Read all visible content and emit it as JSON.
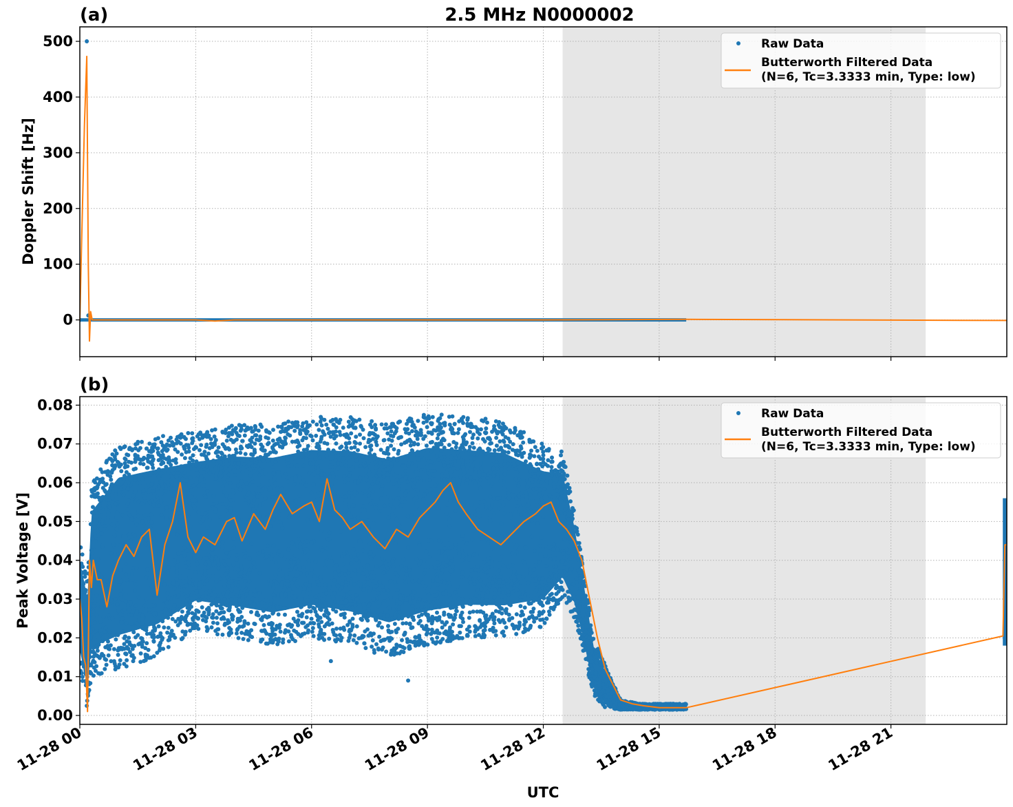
{
  "figure": {
    "suptitle": "2.5 MHz N0000002",
    "xlabel": "UTC",
    "x_tick_labels": [
      "11-28 00",
      "11-28 03",
      "11-28 06",
      "11-28 09",
      "11-28 12",
      "11-28 15",
      "11-28 18",
      "11-28 21"
    ],
    "legend": {
      "raw_label": "Raw Data",
      "filtered_label_line1": "Butterworth Filtered Data",
      "filtered_label_line2": "(N=6, Tc=3.3333 min, Type: low)"
    },
    "colors": {
      "raw": "#1f77b4",
      "filtered": "#ff7f0e",
      "shade": "#e6e6e6",
      "grid": "#b0b0b0"
    }
  },
  "chart_data": [
    {
      "panel": "(a)",
      "type": "scatter",
      "title": "2.5 MHz N0000002",
      "xlabel": "UTC",
      "ylabel": "Doppler Shift [Hz]",
      "xlim_hours": [
        0,
        24
      ],
      "ylim": [
        -66,
        526
      ],
      "yticks": [
        0,
        100,
        200,
        300,
        400,
        500
      ],
      "ytick_labels": [
        "0",
        "100",
        "200",
        "300",
        "400",
        "500"
      ],
      "grid": true,
      "legend_position": "upper right",
      "shaded_region_hours": [
        12.5,
        21.9
      ],
      "series": [
        {
          "name": "Raw Data",
          "style": "markers",
          "band": {
            "x_start": 0.0,
            "x_end": 15.7,
            "y_low": -3,
            "y_high": 3
          },
          "outliers": [
            {
              "x": 0.18,
              "y": 500
            },
            {
              "x": 0.22,
              "y": 8
            },
            {
              "x": 0.0,
              "y": 0
            }
          ]
        },
        {
          "name": "Butterworth Filtered Data (N=6, Tc=3.3333 min, Type: low)",
          "style": "line",
          "x": [
            0.0,
            0.05,
            0.12,
            0.18,
            0.22,
            0.25,
            0.28,
            0.32,
            0.4,
            3.0,
            3.5,
            4.0,
            12.0,
            15.7,
            23.9,
            24.0
          ],
          "y": [
            0,
            150,
            350,
            473,
            100,
            -38,
            15,
            0,
            0,
            0,
            -2,
            0,
            0,
            1,
            -1,
            -1
          ]
        }
      ]
    },
    {
      "panel": "(b)",
      "type": "scatter",
      "xlabel": "UTC",
      "ylabel": "Peak Voltage [V]",
      "xlim_hours": [
        0,
        24
      ],
      "ylim": [
        -0.0023,
        0.0822
      ],
      "yticks": [
        0.0,
        0.01,
        0.02,
        0.03,
        0.04,
        0.05,
        0.06,
        0.07,
        0.08
      ],
      "ytick_labels": [
        "0.00",
        "0.01",
        "0.02",
        "0.03",
        "0.04",
        "0.05",
        "0.06",
        "0.07",
        "0.08"
      ],
      "grid": true,
      "legend_position": "upper right",
      "shaded_region_hours": [
        12.5,
        21.9
      ],
      "series": [
        {
          "name": "Raw Data",
          "style": "markers",
          "envelope": {
            "x": [
              0.0,
              0.2,
              0.3,
              1.0,
              2.0,
              3.0,
              4.0,
              5.0,
              6.0,
              7.0,
              8.0,
              9.0,
              10.0,
              11.0,
              12.0,
              12.5,
              12.8,
              13.0,
              13.3,
              13.6,
              14.0,
              14.5,
              15.0,
              15.7
            ],
            "low": [
              0.012,
              0.002,
              0.01,
              0.012,
              0.015,
              0.022,
              0.02,
              0.018,
              0.02,
              0.018,
              0.015,
              0.018,
              0.02,
              0.02,
              0.023,
              0.03,
              0.025,
              0.018,
              0.005,
              0.002,
              0.0015,
              0.0015,
              0.0015,
              0.0015
            ],
            "high": [
              0.045,
              0.035,
              0.06,
              0.07,
              0.072,
              0.073,
              0.075,
              0.075,
              0.077,
              0.077,
              0.075,
              0.078,
              0.077,
              0.076,
              0.07,
              0.068,
              0.053,
              0.04,
              0.02,
              0.013,
              0.004,
              0.003,
              0.003,
              0.003
            ]
          },
          "outliers": [
            {
              "x": 0.18,
              "y": 0.0025
            },
            {
              "x": 8.5,
              "y": 0.009
            },
            {
              "x": 6.5,
              "y": 0.014
            }
          ],
          "end_cluster": {
            "x": 23.95,
            "y_low": 0.018,
            "y_high": 0.056
          }
        },
        {
          "name": "Butterworth Filtered Data (N=6, Tc=3.3333 min, Type: low)",
          "style": "line",
          "x": [
            0.0,
            0.05,
            0.1,
            0.15,
            0.2,
            0.25,
            0.3,
            0.35,
            0.45,
            0.55,
            0.7,
            0.85,
            1.0,
            1.2,
            1.4,
            1.6,
            1.8,
            2.0,
            2.2,
            2.4,
            2.6,
            2.8,
            3.0,
            3.2,
            3.5,
            3.8,
            4.0,
            4.2,
            4.5,
            4.8,
            5.0,
            5.2,
            5.5,
            5.8,
            6.0,
            6.2,
            6.4,
            6.6,
            6.8,
            7.0,
            7.3,
            7.6,
            7.9,
            8.2,
            8.5,
            8.8,
            9.0,
            9.2,
            9.4,
            9.6,
            9.8,
            10.0,
            10.3,
            10.6,
            10.9,
            11.2,
            11.5,
            11.8,
            12.0,
            12.2,
            12.4,
            12.6,
            12.8,
            13.0,
            13.2,
            13.4,
            13.6,
            13.8,
            14.0,
            14.3,
            14.6,
            15.0,
            15.7,
            23.9,
            23.95,
            24.0
          ],
          "y": [
            0.03,
            0.025,
            0.015,
            0.013,
            0.001,
            0.04,
            0.033,
            0.04,
            0.035,
            0.035,
            0.028,
            0.036,
            0.04,
            0.044,
            0.041,
            0.046,
            0.048,
            0.031,
            0.044,
            0.05,
            0.06,
            0.046,
            0.042,
            0.046,
            0.044,
            0.05,
            0.051,
            0.045,
            0.052,
            0.048,
            0.053,
            0.057,
            0.052,
            0.054,
            0.055,
            0.05,
            0.061,
            0.053,
            0.051,
            0.048,
            0.05,
            0.046,
            0.043,
            0.048,
            0.046,
            0.051,
            0.053,
            0.055,
            0.058,
            0.06,
            0.055,
            0.052,
            0.048,
            0.046,
            0.044,
            0.047,
            0.05,
            0.052,
            0.054,
            0.055,
            0.05,
            0.048,
            0.045,
            0.04,
            0.03,
            0.02,
            0.012,
            0.008,
            0.004,
            0.003,
            0.0025,
            0.002,
            0.002,
            0.0205,
            0.044,
            0.044
          ]
        }
      ]
    }
  ]
}
